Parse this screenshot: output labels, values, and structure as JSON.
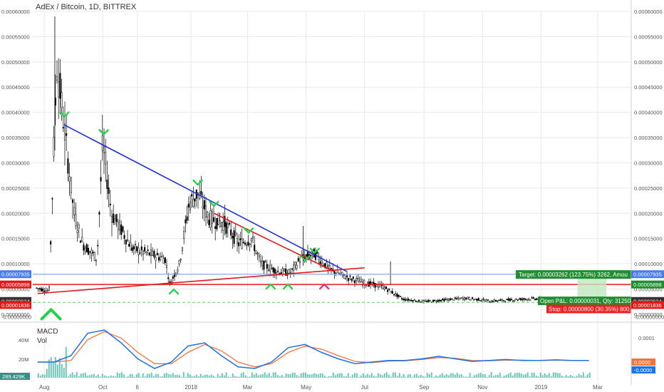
{
  "title": "AdEx / Bitcoin, 1D, BITTREX",
  "colors": {
    "candle": "#000000",
    "grid": "#e9e9e9",
    "trend_blue": "#1a2fd4",
    "trend_red": "#e31919",
    "support_red": "#e31919",
    "level_blue": "#8aa6ee",
    "arrow_green": "#24d24a",
    "arrow_pink": "#e8317a",
    "target_green": "#1e8f2e",
    "stop_red": "#ef1f1f",
    "macd_blue": "#1a73e8",
    "signal_orange": "#f4733c",
    "volume": "#6fc4b8"
  },
  "chart_data": {
    "type": "candlestick",
    "title": "AdEx / Bitcoin, 1D, BITTREX",
    "y_unit": "BTC",
    "ylim": [
      -1e-05,
      0.0006
    ],
    "y_ticks": [
      "0.00060000",
      "0.00055000",
      "0.00050000",
      "0.00045000",
      "0.00040000",
      "0.00035000",
      "0.00030000",
      "0.00025000",
      "0.00020000",
      "0.00015000",
      "0.00010000",
      "0.00005000",
      "0.00000000",
      "-0.00000000"
    ],
    "x_ticks": [
      "Aug",
      "Oct",
      "6",
      "2018",
      "Mar",
      "May",
      "Jul",
      "Sep",
      "Nov",
      "2019",
      "Mar"
    ],
    "price_path": [
      {
        "date": "2017-07-24",
        "close": 5.2e-05
      },
      {
        "date": "2017-08-06",
        "close": 4.6e-05
      },
      {
        "date": "2017-08-14",
        "close": 0.0005
      },
      {
        "date": "2017-08-20",
        "close": 0.0004
      },
      {
        "date": "2017-09-01",
        "close": 0.0002
      },
      {
        "date": "2017-09-10",
        "close": 0.00014
      },
      {
        "date": "2017-09-25",
        "close": 0.00011
      },
      {
        "date": "2017-10-01",
        "close": 0.00034
      },
      {
        "date": "2017-10-10",
        "close": 0.0002
      },
      {
        "date": "2017-11-01",
        "close": 0.00013
      },
      {
        "date": "2017-12-05",
        "close": 0.00011
      },
      {
        "date": "2017-12-10",
        "close": 6e-05
      },
      {
        "date": "2017-12-20",
        "close": 0.0001
      },
      {
        "date": "2017-12-30",
        "close": 0.00022
      },
      {
        "date": "2018-01-08",
        "close": 0.00024
      },
      {
        "date": "2018-01-20",
        "close": 0.00019
      },
      {
        "date": "2018-02-05",
        "close": 0.00018
      },
      {
        "date": "2018-02-20",
        "close": 0.00014
      },
      {
        "date": "2018-03-05",
        "close": 0.00015
      },
      {
        "date": "2018-03-15",
        "close": 0.0001
      },
      {
        "date": "2018-04-01",
        "close": 8.5e-05
      },
      {
        "date": "2018-04-15",
        "close": 8.2e-05
      },
      {
        "date": "2018-04-25",
        "close": 0.00011
      },
      {
        "date": "2018-05-10",
        "close": 0.00012
      },
      {
        "date": "2018-05-25",
        "close": 9e-05
      },
      {
        "date": "2018-06-10",
        "close": 7.5e-05
      },
      {
        "date": "2018-07-01",
        "close": 6.2e-05
      },
      {
        "date": "2018-07-20",
        "close": 5.5e-05
      },
      {
        "date": "2018-08-10",
        "close": 3e-05
      },
      {
        "date": "2018-09-01",
        "close": 2.5e-05
      },
      {
        "date": "2018-10-15",
        "close": 3.2e-05
      },
      {
        "date": "2018-11-10",
        "close": 2.6e-05
      },
      {
        "date": "2018-12-10",
        "close": 3e-05
      },
      {
        "date": "2018-12-31",
        "close": 3.1e-05
      }
    ],
    "trendlines": [
      {
        "name": "descending resistance",
        "color": "blue",
        "from": {
          "date": "2017-08-22",
          "price": 0.000375
        },
        "to": {
          "date": "2018-06-12",
          "price": 8.5e-05
        }
      },
      {
        "name": "descending",
        "color": "red",
        "from": {
          "date": "2018-01-25",
          "price": 0.0002
        },
        "to": {
          "date": "2018-05-30",
          "price": 8.5e-05
        }
      },
      {
        "name": "rising",
        "color": "red",
        "from": {
          "date": "2017-07-25",
          "price": 4.1e-05
        },
        "to": {
          "date": "2018-07-01",
          "price": 9.2e-05
        }
      },
      {
        "name": "support",
        "color": "red",
        "horizontal": true,
        "price": 5.898e-05
      }
    ],
    "horizontal_levels": [
      {
        "price": 7.935e-05,
        "label": "0.00007935",
        "color": "blue"
      },
      {
        "price": 5.898e-05,
        "label": "0.00005898",
        "color": "red"
      },
      {
        "price": 2.634e-05,
        "label": "0.00002634",
        "color": "dark"
      },
      {
        "price": 1.836e-05,
        "label": "0.00001836",
        "color": "red"
      }
    ],
    "left_price_labels": [
      "0.00007935",
      "0.00005898",
      "0.00002634",
      "0.00001836"
    ],
    "right_price_labels": [
      "0.00007935",
      "0.00005898",
      "0.00002634",
      "0.00001836"
    ],
    "position": {
      "target_text": "Target: 0.00003262 (123.75%) 3262, Amou",
      "open_text": "Open P&L: 0.00000031, Qty: 312500",
      "stop_text": "Stop: 0.00000800 (30.35%) 800, Amou"
    },
    "arrows": [
      {
        "dir": "down",
        "color": "green",
        "date": "2017-08-22",
        "price": 0.000395
      },
      {
        "dir": "down",
        "color": "green",
        "date": "2017-10-02",
        "price": 0.00036
      },
      {
        "dir": "down",
        "color": "green",
        "date": "2018-01-08",
        "price": 0.00026
      },
      {
        "dir": "down",
        "color": "green",
        "date": "2018-01-25",
        "price": 0.000218
      },
      {
        "dir": "down",
        "color": "green",
        "date": "2018-03-02",
        "price": 0.000165
      },
      {
        "dir": "down",
        "color": "green",
        "date": "2018-04-30",
        "price": 0.00011
      },
      {
        "dir": "down",
        "color": "green",
        "date": "2018-05-10",
        "price": 0.000125
      },
      {
        "dir": "up",
        "color": "green",
        "date": "2017-08-08",
        "price": 0.0
      },
      {
        "dir": "up",
        "color": "green",
        "date": "2017-12-14",
        "price": 4.5e-05
      },
      {
        "dir": "up",
        "color": "green",
        "date": "2018-03-25",
        "price": 5.5e-05
      },
      {
        "dir": "up",
        "color": "green",
        "date": "2018-04-12",
        "price": 5.5e-05
      },
      {
        "dir": "up",
        "color": "pink",
        "date": "2018-05-20",
        "price": 5.5e-05
      }
    ],
    "indicator": {
      "name": "MACD",
      "sub": "Vol",
      "volume_axis": [
        "40M",
        "20M"
      ],
      "right_axis": [
        "0.0001",
        "0.0000",
        "-0.0000"
      ],
      "volume_last": "289.429K",
      "macd_path": [
        0.0,
        0.0,
        0.2,
        0.9,
        1.0,
        0.6,
        0.1,
        -0.2,
        0.0,
        0.5,
        0.6,
        0.2,
        -0.15,
        -0.2,
        0.0,
        0.45,
        0.55,
        0.3,
        0.1,
        -0.05,
        0.0,
        0.05,
        0.05,
        0.1,
        0.18,
        0.1,
        0.02,
        0.05,
        0.08,
        0.05,
        0.05,
        0.07,
        0.05,
        0.05
      ],
      "signal_path": [
        0.0,
        0.0,
        0.05,
        0.7,
        0.95,
        0.75,
        0.3,
        -0.05,
        -0.05,
        0.3,
        0.55,
        0.35,
        0.0,
        -0.15,
        -0.05,
        0.3,
        0.5,
        0.4,
        0.2,
        0.02,
        -0.02,
        0.03,
        0.04,
        0.08,
        0.14,
        0.12,
        0.05,
        0.04,
        0.06,
        0.06,
        0.05,
        0.06,
        0.05,
        0.05
      ]
    }
  }
}
